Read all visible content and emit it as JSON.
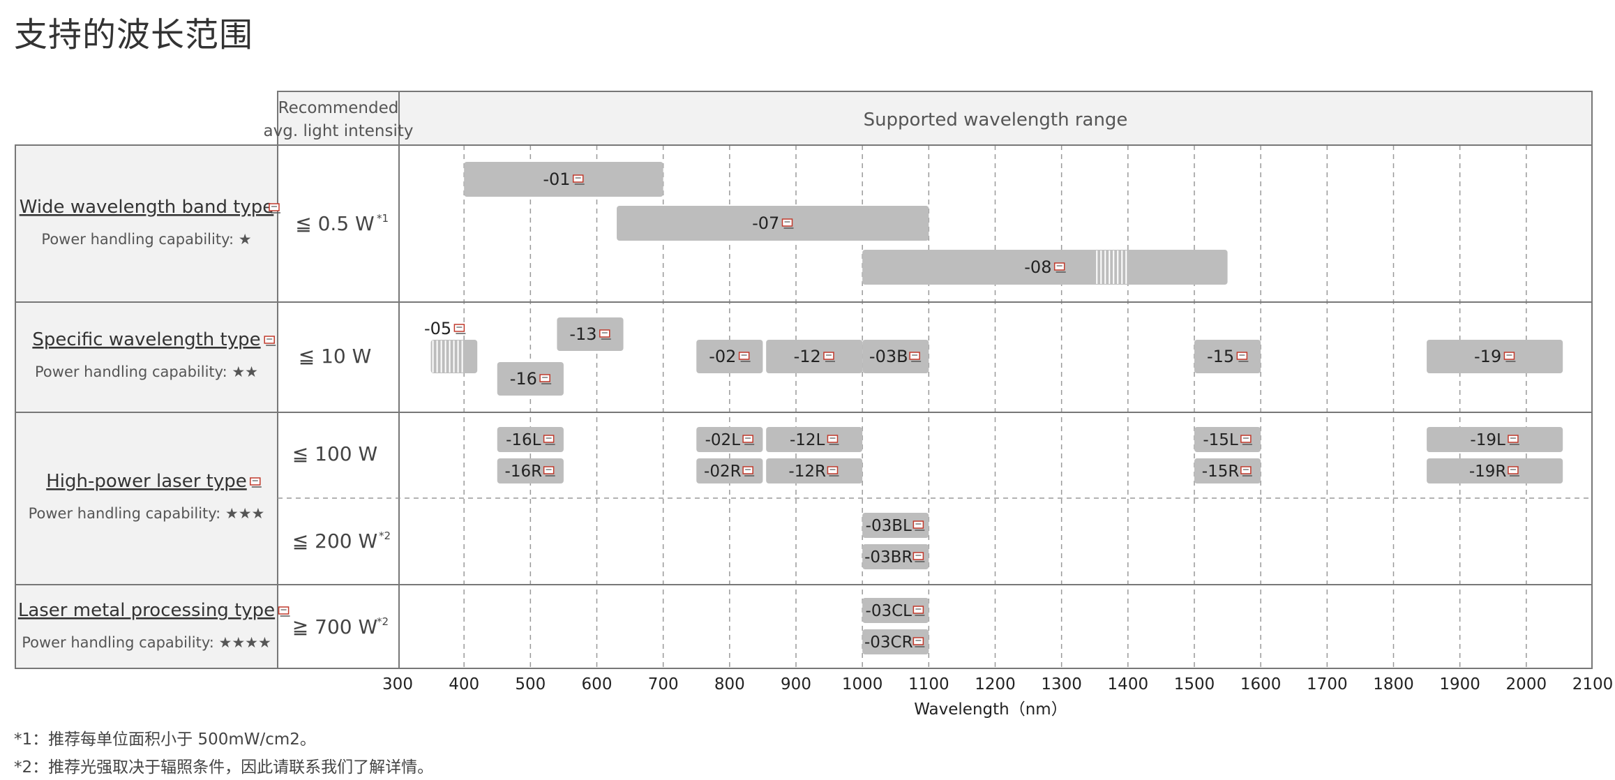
{
  "page_title": "支持的波长范围",
  "header": {
    "intensity": [
      "Recommended",
      "avg. light intensity"
    ],
    "range": "Supported wavelength range"
  },
  "rows": [
    {
      "key": "wide",
      "name": "Wide wavelength band type",
      "capability_label": "Power handling capability:",
      "stars": "★",
      "intensity": "≦ 0.5 W",
      "note_mark": "*1"
    },
    {
      "key": "specific",
      "name": "Specific wavelength type",
      "capability_label": "Power handling capability:",
      "stars": "★★",
      "intensity": "≦ 10 W",
      "note_mark": ""
    },
    {
      "key": "highpower",
      "name": "High-power laser type",
      "capability_label": "Power handling capability:",
      "stars": "★★★",
      "intensity": "≦ 100 W",
      "note_mark": "",
      "intensity2": "≦ 200 W",
      "note_mark2": "*2"
    },
    {
      "key": "metal",
      "name": "Laser metal processing type",
      "capability_label": "Power handling capability:",
      "stars": "★★★★",
      "intensity": "≧ 700 W",
      "note_mark": "*2"
    }
  ],
  "chart_data": {
    "type": "bar",
    "orientation": "horizontal-range",
    "xlabel": "Wavelength（nm）",
    "xlim": [
      300,
      2100
    ],
    "x_ticks": [
      300,
      400,
      500,
      600,
      700,
      800,
      900,
      1000,
      1100,
      1200,
      1300,
      1400,
      1500,
      1600,
      1700,
      1800,
      1900,
      2000,
      2100
    ],
    "grid": "vertical dashed",
    "bars": [
      {
        "row": "wide",
        "lane": 0,
        "label": "-01",
        "start": 400,
        "end": 700
      },
      {
        "row": "wide",
        "lane": 1,
        "label": "-07",
        "start": 630,
        "end": 1100
      },
      {
        "row": "wide",
        "lane": 2,
        "label": "-08",
        "start": 1000,
        "end": 1550,
        "gap": [
          1350,
          1400
        ]
      },
      {
        "row": "specific",
        "lane": 1,
        "label": "-05",
        "start": 350,
        "end": 420,
        "partial": [
          350,
          400
        ],
        "label_above": true
      },
      {
        "row": "specific",
        "lane": 0,
        "label": "-13",
        "start": 540,
        "end": 640
      },
      {
        "row": "specific",
        "lane": 2,
        "label": "-16",
        "start": 450,
        "end": 550
      },
      {
        "row": "specific",
        "lane": 1,
        "label": "-02",
        "start": 750,
        "end": 850
      },
      {
        "row": "specific",
        "lane": 1,
        "label": "-12",
        "start": 855,
        "end": 1000
      },
      {
        "row": "specific",
        "lane": 1,
        "label": "-03B",
        "start": 1000,
        "end": 1100
      },
      {
        "row": "specific",
        "lane": 1,
        "label": "-15",
        "start": 1500,
        "end": 1600
      },
      {
        "row": "specific",
        "lane": 1,
        "label": "-19",
        "start": 1850,
        "end": 2055
      },
      {
        "row": "highpower",
        "lane": 0,
        "label": "-16L",
        "start": 450,
        "end": 550
      },
      {
        "row": "highpower",
        "lane": 1,
        "label": "-16R",
        "start": 450,
        "end": 550
      },
      {
        "row": "highpower",
        "lane": 0,
        "label": "-02L",
        "start": 750,
        "end": 850
      },
      {
        "row": "highpower",
        "lane": 1,
        "label": "-02R",
        "start": 750,
        "end": 850
      },
      {
        "row": "highpower",
        "lane": 0,
        "label": "-12L",
        "start": 855,
        "end": 1000
      },
      {
        "row": "highpower",
        "lane": 1,
        "label": "-12R",
        "start": 855,
        "end": 1000
      },
      {
        "row": "highpower",
        "lane": 0,
        "label": "-15L",
        "start": 1500,
        "end": 1600
      },
      {
        "row": "highpower",
        "lane": 1,
        "label": "-15R",
        "start": 1500,
        "end": 1600
      },
      {
        "row": "highpower",
        "lane": 0,
        "label": "-19L",
        "start": 1850,
        "end": 2055
      },
      {
        "row": "highpower",
        "lane": 1,
        "label": "-19R",
        "start": 1850,
        "end": 2055
      },
      {
        "row": "highpower",
        "lane": 2,
        "label": "-03BL",
        "start": 1000,
        "end": 1100
      },
      {
        "row": "highpower",
        "lane": 3,
        "label": "-03BR",
        "start": 1000,
        "end": 1100
      },
      {
        "row": "metal",
        "lane": 0,
        "label": "-03CL",
        "start": 1000,
        "end": 1100
      },
      {
        "row": "metal",
        "lane": 1,
        "label": "-03CR",
        "start": 1000,
        "end": 1100
      }
    ]
  },
  "footnotes": [
    "*1：推荐每单位面积小于 500mW/cm2。",
    "*2：推荐光强取决于辐照条件，因此请联系我们了解详情。"
  ],
  "colors": {
    "bar": "#bdbdbd",
    "bar_text": "#222222",
    "left_bg": "#f2f2f2",
    "header_bg": "#f2f2f2",
    "border": "#777777",
    "grid": "#999999"
  }
}
